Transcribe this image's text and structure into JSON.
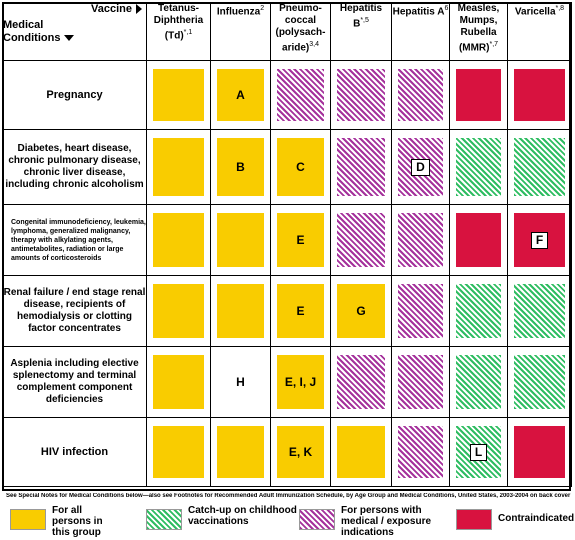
{
  "header": {
    "vaccine_label": "Vaccine",
    "conditions_label_1": "Medical",
    "conditions_label_2": "Conditions",
    "columns": [
      {
        "lines": [
          "Tetanus-",
          "Diphtheria",
          "(Td)"
        ],
        "sup": "*,1"
      },
      {
        "lines": [
          "Influenza"
        ],
        "sup": "2"
      },
      {
        "lines": [
          "Pneumo-",
          "coccal",
          "(polysach-",
          "aride)"
        ],
        "sup": "3,4"
      },
      {
        "lines": [
          "Hepatitis B"
        ],
        "sup": "*,5"
      },
      {
        "lines": [
          "Hepatitis A"
        ],
        "sup": "6"
      },
      {
        "lines": [
          "Measles,",
          "Mumps,",
          "Rubella",
          "(MMR)"
        ],
        "sup": "*,7"
      },
      {
        "lines": [
          "Varicella"
        ],
        "sup": "*,8"
      }
    ]
  },
  "rows": [
    {
      "condition": "Pregnancy",
      "cells": [
        {
          "fill": "yellow",
          "label": ""
        },
        {
          "fill": "yellow",
          "label": "A"
        },
        {
          "fill": "purple",
          "label": ""
        },
        {
          "fill": "purple",
          "label": ""
        },
        {
          "fill": "purple",
          "label": ""
        },
        {
          "fill": "red",
          "label": ""
        },
        {
          "fill": "red",
          "label": ""
        }
      ]
    },
    {
      "condition": "Diabetes, heart disease, chronic pulmonary disease, chronic liver disease, including chronic alcoholism",
      "cells": [
        {
          "fill": "yellow",
          "label": ""
        },
        {
          "fill": "yellow",
          "label": "B"
        },
        {
          "fill": "yellow",
          "label": "C"
        },
        {
          "fill": "purple",
          "label": ""
        },
        {
          "fill": "purple",
          "label": "D"
        },
        {
          "fill": "green",
          "label": ""
        },
        {
          "fill": "green",
          "label": ""
        }
      ]
    },
    {
      "condition": "Congenital immunodeficiency, leukemia, lymphoma, generalized malignancy, therapy with alkylating agents, antimetabolites, radiation or large amounts of corticosteroids",
      "cells": [
        {
          "fill": "yellow",
          "label": ""
        },
        {
          "fill": "yellow",
          "label": ""
        },
        {
          "fill": "yellow",
          "label": "E"
        },
        {
          "fill": "purple",
          "label": ""
        },
        {
          "fill": "purple",
          "label": ""
        },
        {
          "fill": "red",
          "label": ""
        },
        {
          "fill": "red",
          "label": "F"
        }
      ]
    },
    {
      "condition": "Renal failure / end stage renal disease, recipients of hemodialysis or clotting factor concentrates",
      "cells": [
        {
          "fill": "yellow",
          "label": ""
        },
        {
          "fill": "yellow",
          "label": ""
        },
        {
          "fill": "yellow",
          "label": "E"
        },
        {
          "fill": "yellow",
          "label": "G"
        },
        {
          "fill": "purple",
          "label": ""
        },
        {
          "fill": "green",
          "label": ""
        },
        {
          "fill": "green",
          "label": ""
        }
      ]
    },
    {
      "condition": "Asplenia including elective splenectomy and terminal complement component deficiencies",
      "cells": [
        {
          "fill": "yellow",
          "label": ""
        },
        {
          "fill": "white",
          "label": "H"
        },
        {
          "fill": "yellow",
          "label": "E, I, J"
        },
        {
          "fill": "purple",
          "label": ""
        },
        {
          "fill": "purple",
          "label": ""
        },
        {
          "fill": "green",
          "label": ""
        },
        {
          "fill": "green",
          "label": ""
        }
      ]
    },
    {
      "condition": "HIV infection",
      "cells": [
        {
          "fill": "yellow",
          "label": ""
        },
        {
          "fill": "yellow",
          "label": ""
        },
        {
          "fill": "yellow",
          "label": "E, K"
        },
        {
          "fill": "yellow",
          "label": ""
        },
        {
          "fill": "purple",
          "label": ""
        },
        {
          "fill": "green",
          "label": "L"
        },
        {
          "fill": "red",
          "label": ""
        }
      ]
    }
  ],
  "footnote": "See Special Notes for Medical Conditions below—also see Footnotes for Recommended Adult Immunization Schedule, by Age Group and Medical Conditions, United States, 2003-2004 on back cover",
  "legend": [
    {
      "fill": "yellow",
      "text": "For all persons in this group"
    },
    {
      "fill": "green",
      "text": "Catch-up on childhood vaccinations"
    },
    {
      "fill": "purple",
      "text": "For persons with medical / exposure indications"
    },
    {
      "fill": "red",
      "text": "Contraindicated"
    }
  ],
  "colors": {
    "yellow": "#f9cc00",
    "green": "#2fbd62",
    "purple": "#a5329c",
    "red": "#d8123f"
  }
}
